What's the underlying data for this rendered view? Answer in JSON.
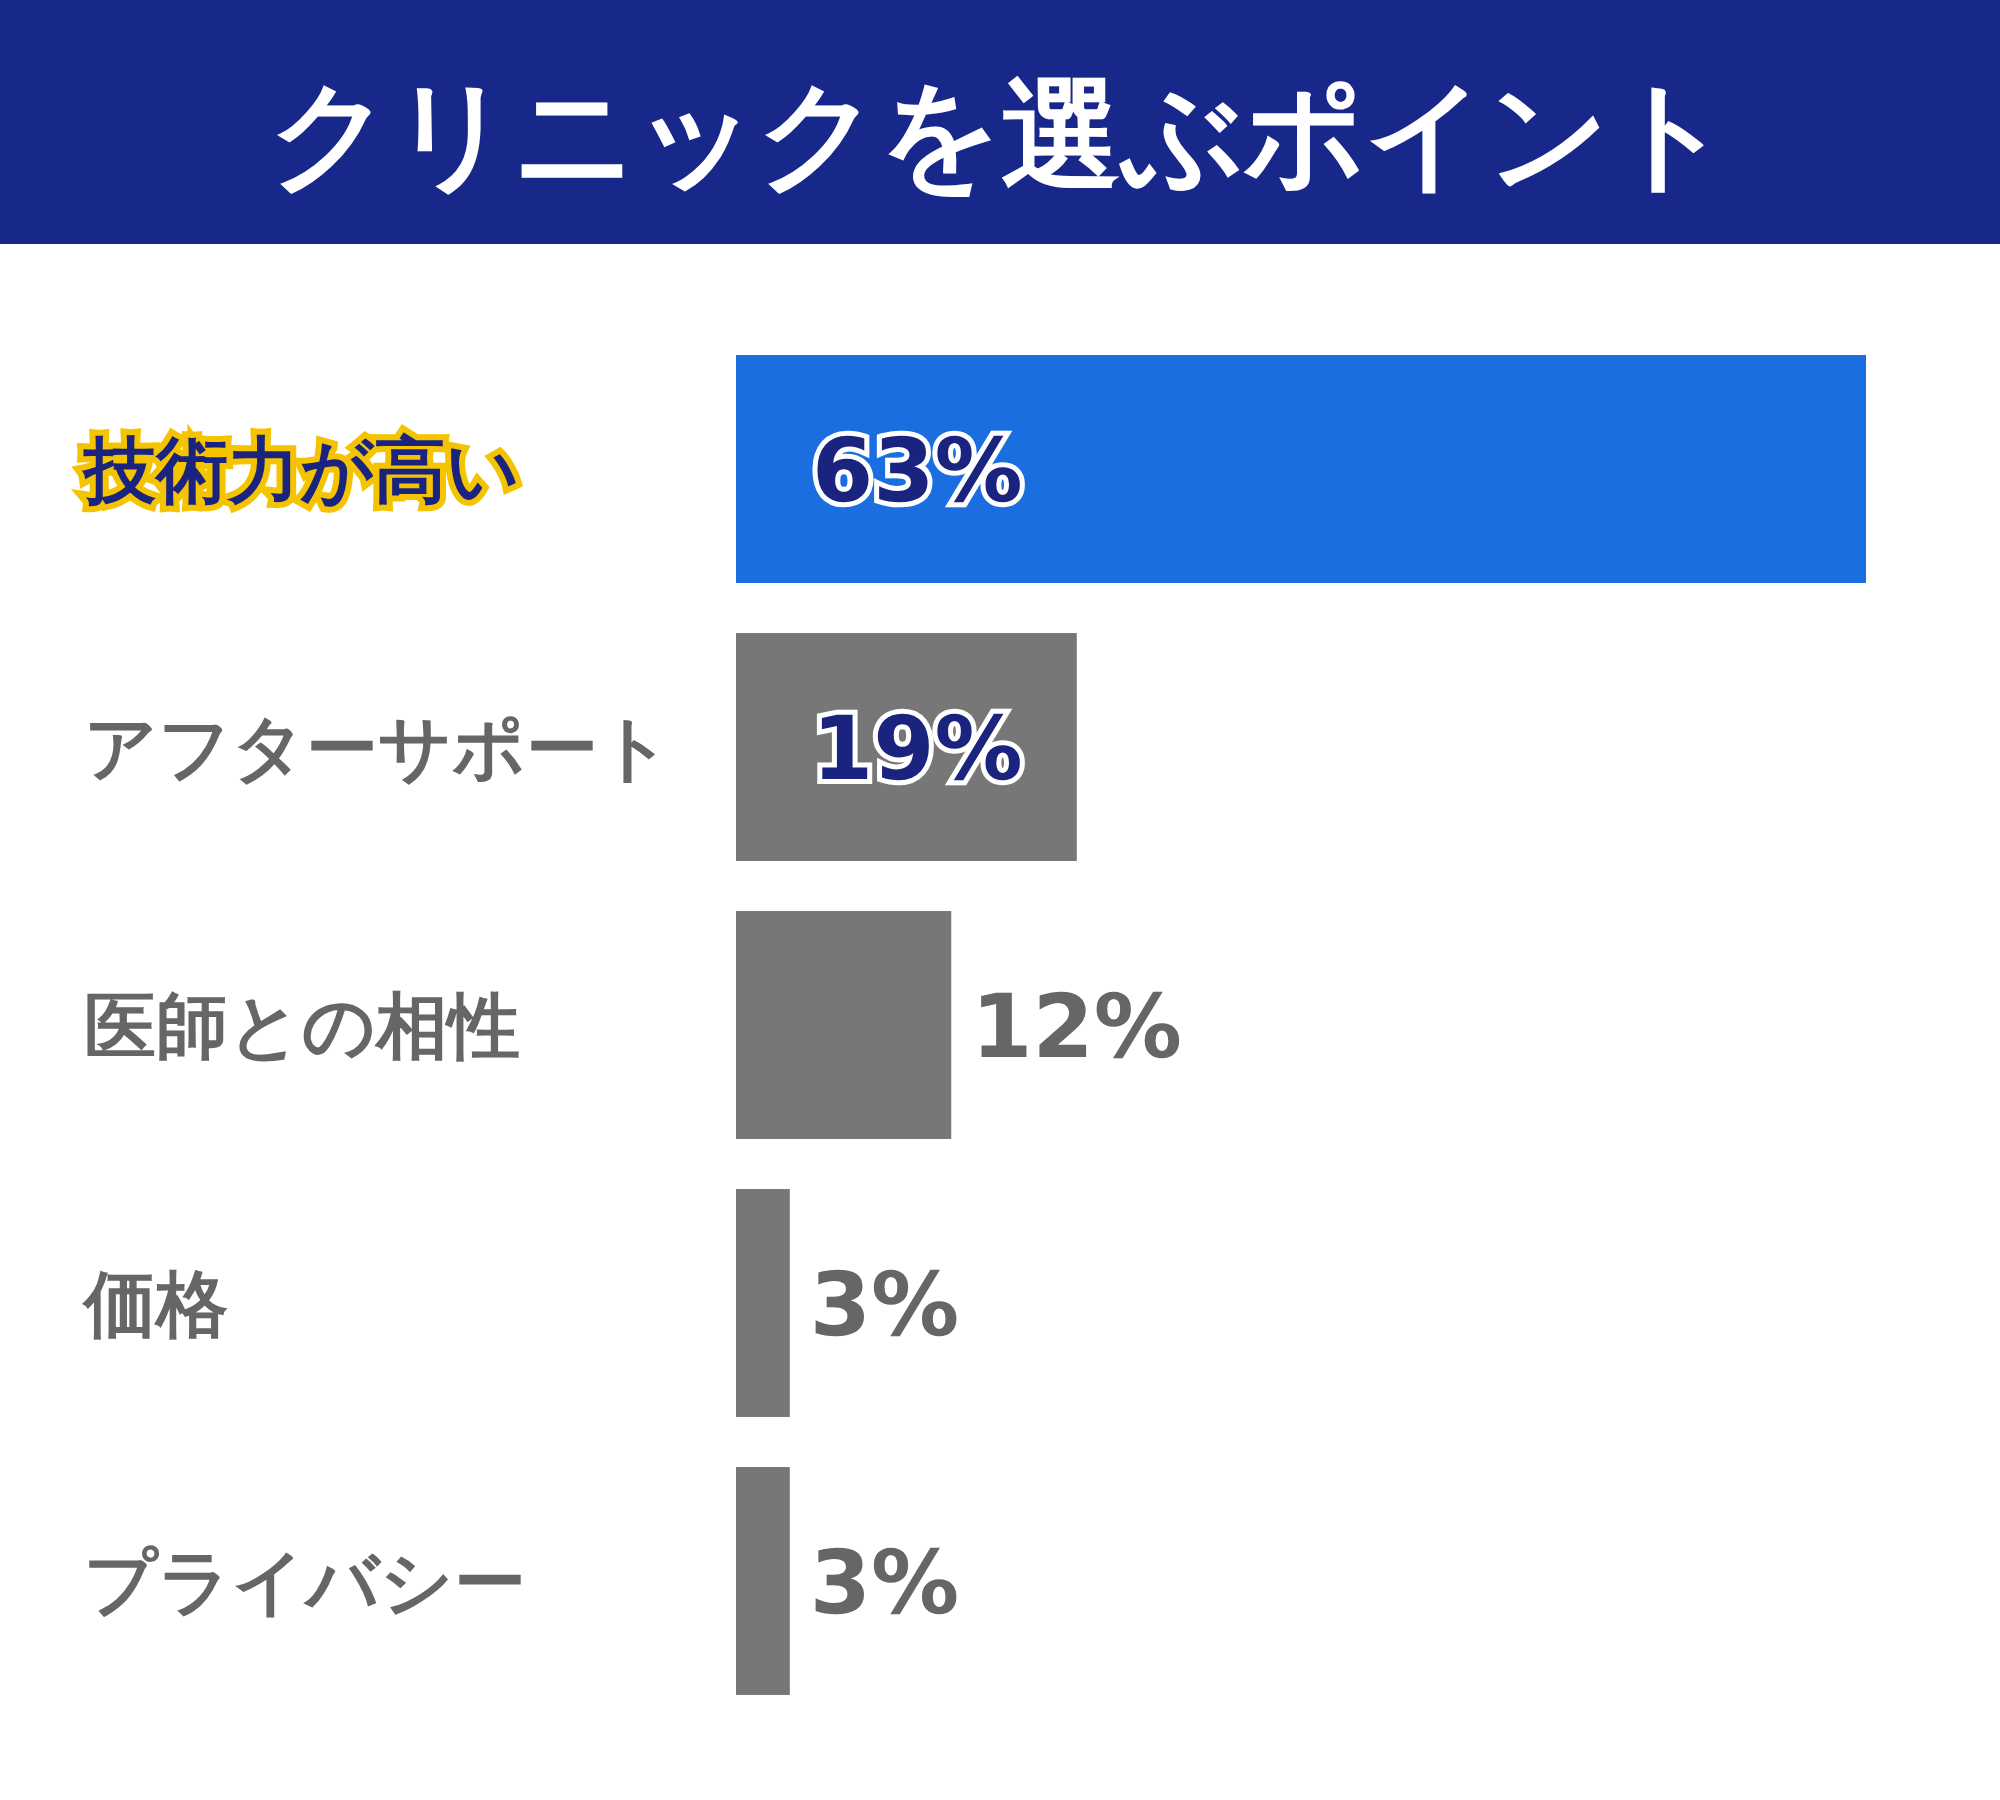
{
  "chart_data": {
    "type": "bar",
    "orientation": "horizontal",
    "title": "クリニックを選ぶポイント",
    "categories": [
      "技術力が高い",
      "アフターサポート",
      "医師との相性",
      "価格",
      "プライバシー"
    ],
    "values": [
      63,
      19,
      12,
      3,
      3
    ],
    "colors": [
      "#1a6ee0",
      "#777777",
      "#777777",
      "#777777",
      "#777777"
    ],
    "value_labels": [
      "63%",
      "19%",
      "12%",
      "3%",
      "3%"
    ]
  }
}
